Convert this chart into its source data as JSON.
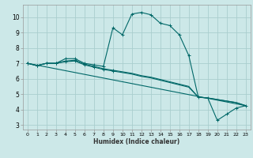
{
  "xlabel": "Humidex (Indice chaleur)",
  "bg_color": "#cce8e8",
  "grid_color": "#aacece",
  "line_color": "#006868",
  "xlim": [
    -0.5,
    23.5
  ],
  "ylim": [
    2.7,
    10.8
  ],
  "xticks": [
    0,
    1,
    2,
    3,
    4,
    5,
    6,
    7,
    8,
    9,
    10,
    11,
    12,
    13,
    14,
    15,
    16,
    17,
    18,
    19,
    20,
    21,
    22,
    23
  ],
  "yticks": [
    3,
    4,
    5,
    6,
    7,
    8,
    9,
    10
  ],
  "curve1_x": [
    0,
    1,
    2,
    3,
    4,
    5,
    6,
    7,
    8,
    9,
    10,
    11,
    12,
    13,
    14,
    15,
    16,
    17,
    18,
    19,
    20,
    21,
    22,
    23
  ],
  "curve1_y": [
    7.0,
    6.85,
    7.0,
    7.0,
    7.3,
    7.3,
    7.0,
    6.9,
    6.8,
    9.3,
    8.85,
    10.2,
    10.3,
    10.15,
    9.6,
    9.45,
    8.85,
    7.5,
    4.8,
    4.75,
    3.3,
    3.7,
    4.1,
    4.25
  ],
  "curve2_x": [
    0,
    1,
    2,
    3,
    4,
    5,
    6,
    7,
    8,
    9,
    10,
    11,
    12,
    13,
    14,
    15,
    16,
    17,
    18,
    19,
    20,
    21,
    22,
    23
  ],
  "curve2_y": [
    7.0,
    6.85,
    7.0,
    7.0,
    7.15,
    7.2,
    6.95,
    6.8,
    6.65,
    6.55,
    6.45,
    6.35,
    6.2,
    6.1,
    5.95,
    5.8,
    5.65,
    5.5,
    4.8,
    4.75,
    4.65,
    4.55,
    4.45,
    4.25
  ],
  "curve3_x": [
    0,
    1,
    2,
    3,
    4,
    5,
    6,
    7,
    8,
    9,
    10,
    11,
    12,
    13,
    14,
    15,
    16,
    17,
    18,
    19,
    20,
    21,
    22,
    23
  ],
  "curve3_y": [
    7.0,
    6.85,
    7.0,
    7.0,
    7.1,
    7.15,
    6.9,
    6.75,
    6.6,
    6.5,
    6.4,
    6.3,
    6.15,
    6.05,
    5.9,
    5.75,
    5.6,
    5.45,
    4.8,
    4.75,
    4.65,
    4.55,
    4.45,
    4.25
  ],
  "curve4_x": [
    0,
    23
  ],
  "curve4_y": [
    7.0,
    4.25
  ],
  "marker_x1": [
    0,
    1,
    2,
    3,
    4,
    5,
    6,
    7,
    8,
    9,
    10,
    11,
    12,
    13,
    14,
    15,
    16,
    17,
    18,
    19,
    20,
    21,
    22,
    23
  ],
  "marker_x_short": [
    0,
    1,
    2,
    3,
    4,
    5,
    6,
    7,
    8,
    9
  ]
}
